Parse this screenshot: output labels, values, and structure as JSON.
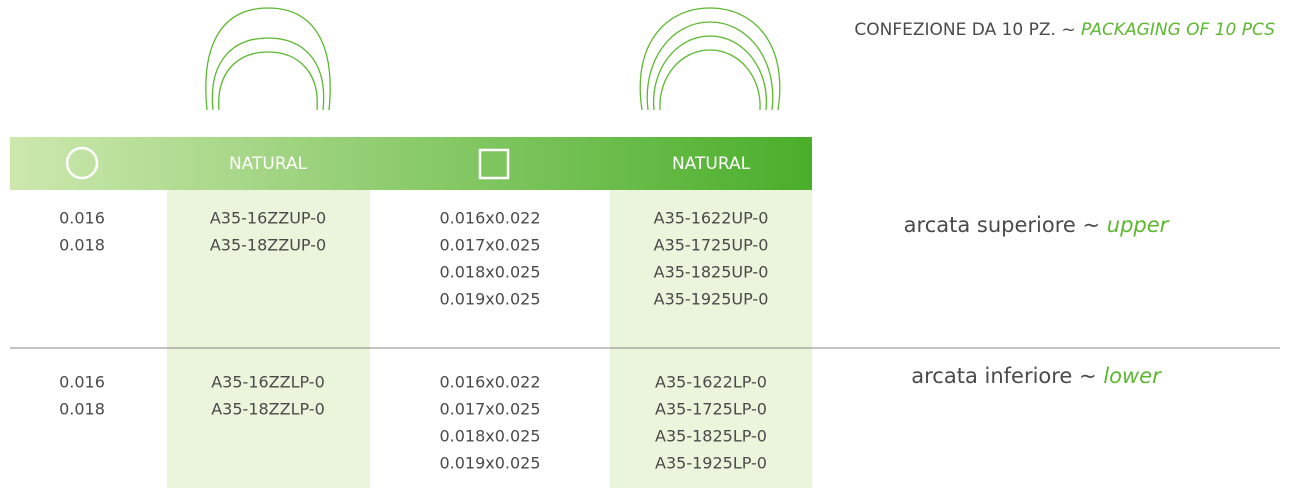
{
  "header": {
    "packaging": "CONFEZIONE DA 10 PZ. ~",
    "packaging_en": "PACKAGING OF 10 PCS"
  },
  "table": {
    "natural_headers": [
      "NATURAL",
      "NATURAL"
    ],
    "sections": [
      {
        "label": "arcata superiore ~",
        "label_en": "upper",
        "round_sizes": [
          "0.016",
          "0.018"
        ],
        "round_codes": [
          "A35-16ZZUP-0",
          "A35-18ZZUP-0"
        ],
        "rect_sizes": [
          "0.016x0.022",
          "0.017x0.025",
          "0.018x0.025",
          "0.019x0.025"
        ],
        "rect_codes": [
          "A35-1622UP-0",
          "A35-1725UP-0",
          "A35-1825UP-0",
          "A35-1925UP-0"
        ]
      },
      {
        "label": "arcata inferiore ~",
        "label_en": "lower",
        "round_sizes": [
          "0.016",
          "0.018"
        ],
        "round_codes": [
          "A35-16ZZLP-0",
          "A35-18ZZLP-0"
        ],
        "rect_sizes": [
          "0.016x0.022",
          "0.017x0.025",
          "0.018x0.025",
          "0.019x0.025"
        ],
        "rect_codes": [
          "A35-1622LP-0",
          "A35-1725LP-0",
          "A35-1825LP-0",
          "A35-1925LP-0"
        ]
      }
    ]
  }
}
